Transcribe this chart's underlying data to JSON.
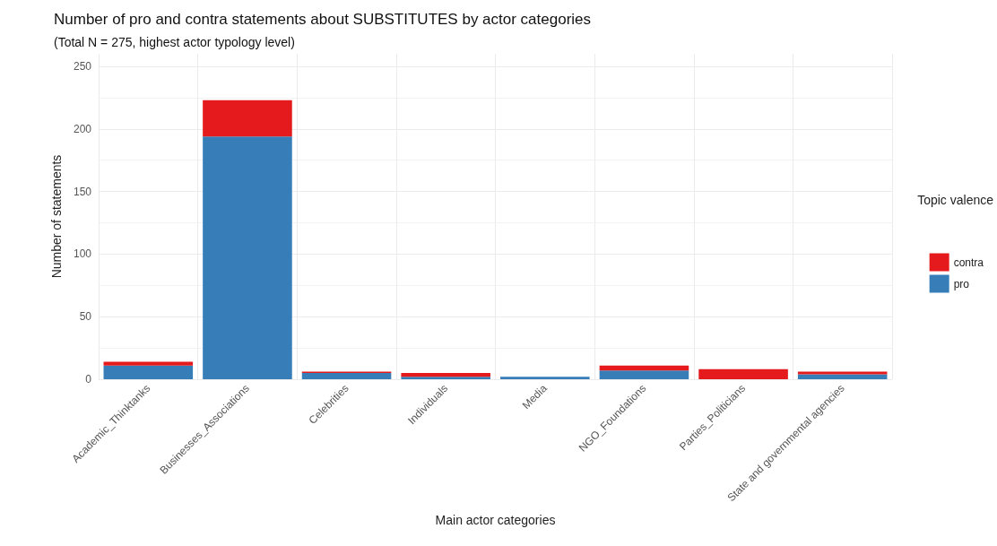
{
  "chart_data": {
    "type": "bar",
    "title": "Number of pro and contra statements about SUBSTITUTES by actor categories",
    "subtitle": "(Total N = 275, highest actor typology level)",
    "xlabel": "Main actor categories",
    "ylabel": "Number of statements",
    "legend_title": "Topic valence",
    "categories": [
      "Academic_Thinktanks",
      "Businesses_Associations",
      "Celebrities",
      "Individuals",
      "Media",
      "NGO_Foundations",
      "Parties_Politicians",
      "State and governmental agencies"
    ],
    "series": [
      {
        "name": "pro",
        "color": "#377eb8",
        "values": [
          11,
          194,
          5,
          2,
          2,
          7,
          0,
          4
        ]
      },
      {
        "name": "contra",
        "color": "#e41a1c",
        "values": [
          3,
          29,
          1,
          3,
          0,
          4,
          8,
          2
        ]
      }
    ],
    "stacked": true,
    "ylim": [
      0,
      260
    ],
    "yticks": [
      0,
      50,
      100,
      150,
      200,
      250
    ],
    "grid": true,
    "legend": "right"
  }
}
